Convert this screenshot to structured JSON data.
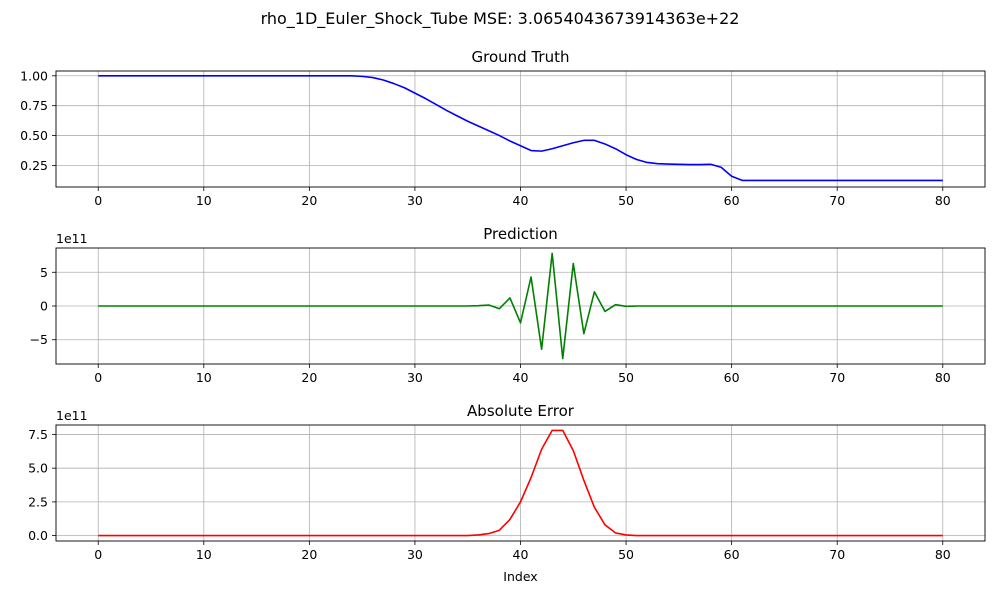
{
  "figure": {
    "suptitle": "rho_1D_Euler_Shock_Tube MSE: 3.0654043673914363e+22"
  },
  "chart_data": [
    {
      "type": "line",
      "title": "Ground Truth",
      "xlabel": "",
      "ylabel": "",
      "offset_text": "",
      "color": "#0000ff",
      "xlim": [
        -4,
        84
      ],
      "ylim": [
        0.07,
        1.04
      ],
      "xticks": [
        0,
        10,
        20,
        30,
        40,
        50,
        60,
        70,
        80
      ],
      "xtick_labels": [
        "0",
        "10",
        "20",
        "30",
        "40",
        "50",
        "60",
        "70",
        "80"
      ],
      "yticks": [
        0.25,
        0.5,
        0.75,
        1.0
      ],
      "ytick_labels": [
        "0.25",
        "0.50",
        "0.75",
        "1.00"
      ],
      "grid": true,
      "x": [
        0,
        1,
        2,
        3,
        4,
        5,
        6,
        7,
        8,
        9,
        10,
        11,
        12,
        13,
        14,
        15,
        16,
        17,
        18,
        19,
        20,
        21,
        22,
        23,
        24,
        25,
        26,
        27,
        28,
        29,
        30,
        31,
        32,
        33,
        34,
        35,
        36,
        37,
        38,
        39,
        40,
        41,
        42,
        43,
        44,
        45,
        46,
        47,
        48,
        49,
        50,
        51,
        52,
        53,
        54,
        55,
        56,
        57,
        58,
        59,
        60,
        61,
        62,
        63,
        64,
        65,
        66,
        67,
        68,
        69,
        70,
        71,
        72,
        73,
        74,
        75,
        76,
        77,
        78,
        79,
        80
      ],
      "y": [
        1.0,
        1.0,
        1.0,
        1.0,
        1.0,
        1.0,
        1.0,
        1.0,
        1.0,
        1.0,
        1.0,
        1.0,
        1.0,
        1.0,
        1.0,
        1.0,
        1.0,
        1.0,
        1.0,
        1.0,
        1.0,
        1.0,
        1.0,
        1.0,
        1.0,
        0.995,
        0.985,
        0.965,
        0.935,
        0.9,
        0.855,
        0.81,
        0.76,
        0.71,
        0.665,
        0.62,
        0.58,
        0.54,
        0.5,
        0.455,
        0.415,
        0.375,
        0.37,
        0.39,
        0.415,
        0.44,
        0.46,
        0.46,
        0.43,
        0.39,
        0.34,
        0.3,
        0.275,
        0.265,
        0.262,
        0.26,
        0.258,
        0.258,
        0.26,
        0.235,
        0.16,
        0.125,
        0.125,
        0.125,
        0.125,
        0.125,
        0.125,
        0.125,
        0.125,
        0.125,
        0.125,
        0.125,
        0.125,
        0.125,
        0.125,
        0.125,
        0.125,
        0.125,
        0.125,
        0.125,
        0.125
      ]
    },
    {
      "type": "line",
      "title": "Prediction",
      "xlabel": "",
      "ylabel": "",
      "offset_text": "1e11",
      "color": "#008000",
      "xlim": [
        -4,
        84
      ],
      "ylim": [
        -8.6,
        8.6
      ],
      "xticks": [
        0,
        10,
        20,
        30,
        40,
        50,
        60,
        70,
        80
      ],
      "xtick_labels": [
        "0",
        "10",
        "20",
        "30",
        "40",
        "50",
        "60",
        "70",
        "80"
      ],
      "yticks": [
        -5,
        0,
        5
      ],
      "ytick_labels": [
        "−5",
        "0",
        "5"
      ],
      "grid": true,
      "x": [
        0,
        1,
        2,
        3,
        4,
        5,
        6,
        7,
        8,
        9,
        10,
        11,
        12,
        13,
        14,
        15,
        16,
        17,
        18,
        19,
        20,
        21,
        22,
        23,
        24,
        25,
        26,
        27,
        28,
        29,
        30,
        31,
        32,
        33,
        34,
        35,
        36,
        37,
        38,
        39,
        40,
        41,
        42,
        43,
        44,
        45,
        46,
        47,
        48,
        49,
        50,
        51,
        52,
        53,
        54,
        55,
        56,
        57,
        58,
        59,
        60,
        61,
        62,
        63,
        64,
        65,
        66,
        67,
        68,
        69,
        70,
        71,
        72,
        73,
        74,
        75,
        76,
        77,
        78,
        79,
        80
      ],
      "y": [
        0,
        0,
        0,
        0,
        0,
        0,
        0,
        0,
        0,
        0,
        0,
        0,
        0,
        0,
        0,
        0,
        0,
        0,
        0,
        0,
        0,
        0,
        0,
        0,
        0,
        0,
        0,
        0,
        0,
        0,
        0,
        0,
        0,
        0,
        0,
        0,
        0.05,
        0.15,
        -0.4,
        1.2,
        -2.5,
        4.3,
        -6.4,
        7.8,
        -7.8,
        6.3,
        -4.1,
        2.1,
        -0.8,
        0.2,
        -0.05,
        0,
        0,
        0,
        0,
        0,
        0,
        0,
        0,
        0,
        0,
        0,
        0,
        0,
        0,
        0,
        0,
        0,
        0,
        0,
        0,
        0,
        0,
        0,
        0,
        0,
        0,
        0,
        0,
        0,
        0
      ]
    },
    {
      "type": "line",
      "title": "Absolute Error",
      "xlabel": "Index",
      "ylabel": "",
      "offset_text": "1e11",
      "color": "#ff0000",
      "xlim": [
        -4,
        84
      ],
      "ylim": [
        -0.4,
        8.2
      ],
      "xticks": [
        0,
        10,
        20,
        30,
        40,
        50,
        60,
        70,
        80
      ],
      "xtick_labels": [
        "0",
        "10",
        "20",
        "30",
        "40",
        "50",
        "60",
        "70",
        "80"
      ],
      "yticks": [
        0,
        2.5,
        5.0,
        7.5
      ],
      "ytick_labels": [
        "0.0",
        "2.5",
        "5.0",
        "7.5"
      ],
      "grid": true,
      "x": [
        0,
        1,
        2,
        3,
        4,
        5,
        6,
        7,
        8,
        9,
        10,
        11,
        12,
        13,
        14,
        15,
        16,
        17,
        18,
        19,
        20,
        21,
        22,
        23,
        24,
        25,
        26,
        27,
        28,
        29,
        30,
        31,
        32,
        33,
        34,
        35,
        36,
        37,
        38,
        39,
        40,
        41,
        42,
        43,
        44,
        45,
        46,
        47,
        48,
        49,
        50,
        51,
        52,
        53,
        54,
        55,
        56,
        57,
        58,
        59,
        60,
        61,
        62,
        63,
        64,
        65,
        66,
        67,
        68,
        69,
        70,
        71,
        72,
        73,
        74,
        75,
        76,
        77,
        78,
        79,
        80
      ],
      "y": [
        0,
        0,
        0,
        0,
        0,
        0,
        0,
        0,
        0,
        0,
        0,
        0,
        0,
        0,
        0,
        0,
        0,
        0,
        0,
        0,
        0,
        0,
        0,
        0,
        0,
        0,
        0,
        0,
        0,
        0,
        0,
        0,
        0,
        0,
        0,
        0,
        0.05,
        0.15,
        0.4,
        1.2,
        2.5,
        4.3,
        6.4,
        7.8,
        7.8,
        6.3,
        4.1,
        2.1,
        0.8,
        0.2,
        0.05,
        0,
        0,
        0,
        0,
        0,
        0,
        0,
        0,
        0,
        0,
        0,
        0,
        0,
        0,
        0,
        0,
        0,
        0,
        0,
        0,
        0,
        0,
        0,
        0,
        0,
        0,
        0,
        0,
        0,
        0
      ]
    }
  ]
}
